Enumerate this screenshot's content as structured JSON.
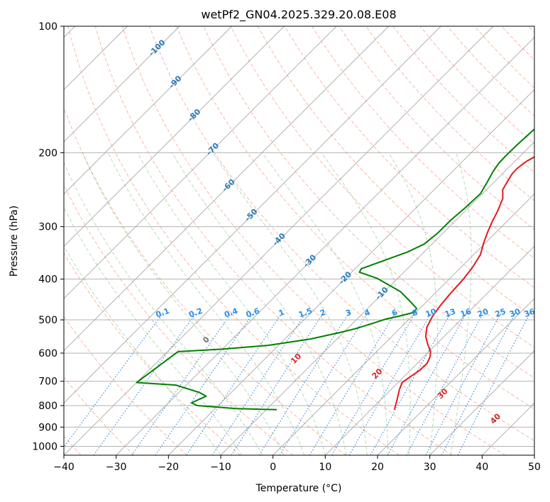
{
  "chart_data": {
    "type": "line",
    "title": "wetPf2_GN04.2025.329.20.08.E08",
    "xlabel": "Temperature (°C)",
    "ylabel": "Pressure (hPa)",
    "xlim": [
      -40,
      50
    ],
    "ylim": [
      1050,
      100
    ],
    "y_scale": "log",
    "skew": "skew-T log-p",
    "grid": true,
    "x_ticks": [
      -40,
      -30,
      -20,
      -10,
      0,
      10,
      20,
      30,
      40,
      50
    ],
    "y_ticks": [
      100,
      200,
      300,
      400,
      500,
      600,
      700,
      800,
      900,
      1000
    ],
    "series": [
      {
        "color": "#e31a1c",
        "x": [
          14.5,
          13.3,
          11.7,
          10.8,
          11.2,
          11.8,
          11.9,
          11.2,
          10.3,
          8.4,
          6.5,
          4.9,
          3.9,
          3.4,
          3.0,
          2.7,
          2.2,
          1.3,
          -0.2,
          -1.6,
          -2.9,
          -3.8,
          -5.2,
          -6.9,
          -7.5,
          -8.1,
          -8.2,
          -7.8,
          -6.9,
          -6.7,
          -5.9,
          -5.0,
          -4.3,
          -2.7,
          -0.7,
          -0.4,
          0.0,
          -0.2,
          -1.0
        ],
        "y": [
          818,
          780,
          735,
          705,
          685,
          660,
          635,
          612,
          595,
          572,
          548,
          520,
          490,
          465,
          435,
          400,
          375,
          350,
          330,
          310,
          290,
          275,
          257,
          245,
          235,
          225,
          218,
          210,
          203,
          195,
          180,
          165,
          152,
          140,
          128,
          115,
          110,
          105,
          100
        ]
      },
      {
        "color": "#008000",
        "x": [
          -8.0,
          -16.0,
          -24.0,
          -25.6,
          -24.1,
          -26.0,
          -32.0,
          -40.0,
          -38.0,
          -30.0,
          -22.0,
          -15.0,
          -10.5,
          -8.5,
          -6.2,
          -4.5,
          -2.5,
          -0.4,
          -0.6,
          -2.3,
          -7.0,
          -14.0,
          -18.5,
          -18.8,
          -13.2,
          -11.5,
          -11.0,
          -11.0,
          -10.6,
          -10.4,
          -11.3,
          -12.2,
          -12.7,
          -12.8,
          -12.7,
          -12.5,
          -12.3,
          -11.8,
          -10.8,
          -9.4,
          -8.0,
          -8.3,
          -8.2,
          -8.3,
          -8.3,
          -8.1
        ],
        "y": [
          818,
          813,
          800,
          788,
          760,
          745,
          715,
          705,
          595,
          587,
          575,
          555,
          535,
          525,
          510,
          498,
          490,
          480,
          470,
          458,
          428,
          398,
          385,
          378,
          345,
          330,
          310,
          290,
          270,
          250,
          235,
          222,
          212,
          203,
          190,
          180,
          170,
          158,
          148,
          138,
          130,
          121,
          112,
          106,
          102,
          100
        ]
      }
    ],
    "isotherm_labels": [
      "-100",
      "-90",
      "-80",
      "-70",
      "-60",
      "-50",
      "-40",
      "-30",
      "-20",
      "-10"
    ],
    "mixing_ratio_labels": [
      "0.1",
      "0.2",
      "0.4",
      "0.6",
      "1",
      "1.5",
      "2",
      "3",
      "4",
      "6",
      "8",
      "10",
      "13",
      "16",
      "20",
      "25",
      "30",
      "36"
    ],
    "moist_adiabat_labels": [
      "0",
      "10",
      "20",
      "30",
      "40"
    ]
  }
}
